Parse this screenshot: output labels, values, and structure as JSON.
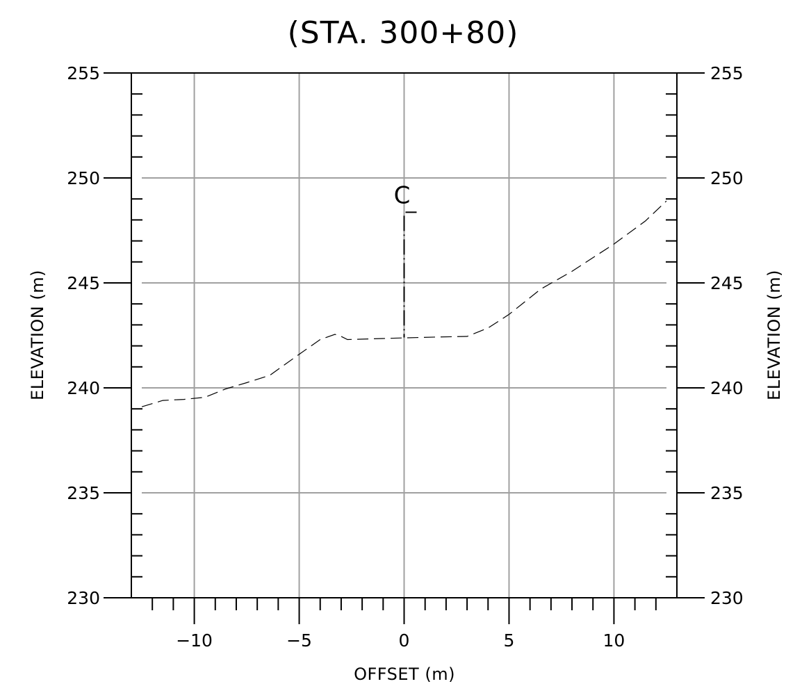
{
  "chart_data": {
    "type": "line",
    "title": "(STA.  300+80)",
    "xlabel": "OFFSET  (m)",
    "ylabel": "ELEVATION  (m)",
    "ylabel_right": "ELEVATION  (m)",
    "xlim": [
      -13,
      13
    ],
    "ylim": [
      230,
      255
    ],
    "x_ticks": [
      -10,
      -5,
      0,
      5,
      10
    ],
    "x_tick_labels": [
      "−10",
      "−5",
      "0",
      "5",
      "10"
    ],
    "y_ticks": [
      230,
      235,
      240,
      245,
      250,
      255
    ],
    "y_tick_labels": [
      "230",
      "235",
      "240",
      "245",
      "250",
      "255"
    ],
    "grid": true,
    "centerline": {
      "label": "C",
      "x": 0,
      "y_range": [
        242.4,
        248.2
      ]
    },
    "series": [
      {
        "style": "dashed",
        "color": "#000000",
        "x": [
          -12.5,
          -11.5,
          -10.5,
          -9.5,
          -8.5,
          -7.5,
          -6.4,
          -5.0,
          -4.0,
          -3.3,
          -3.0,
          -2.7,
          -1.0,
          0.0,
          1.5,
          3.0,
          4.0,
          5.0,
          6.5,
          8.0,
          10.0,
          11.5,
          12.5
        ],
        "y": [
          239.1,
          239.4,
          239.45,
          239.55,
          239.95,
          240.25,
          240.6,
          241.6,
          242.3,
          242.55,
          242.45,
          242.3,
          242.35,
          242.38,
          242.42,
          242.45,
          242.85,
          243.5,
          244.7,
          245.55,
          246.85,
          247.95,
          248.9
        ]
      }
    ],
    "colors": {
      "grid": "#a0a0a0",
      "axis": "#000000",
      "line": "#000000"
    }
  }
}
